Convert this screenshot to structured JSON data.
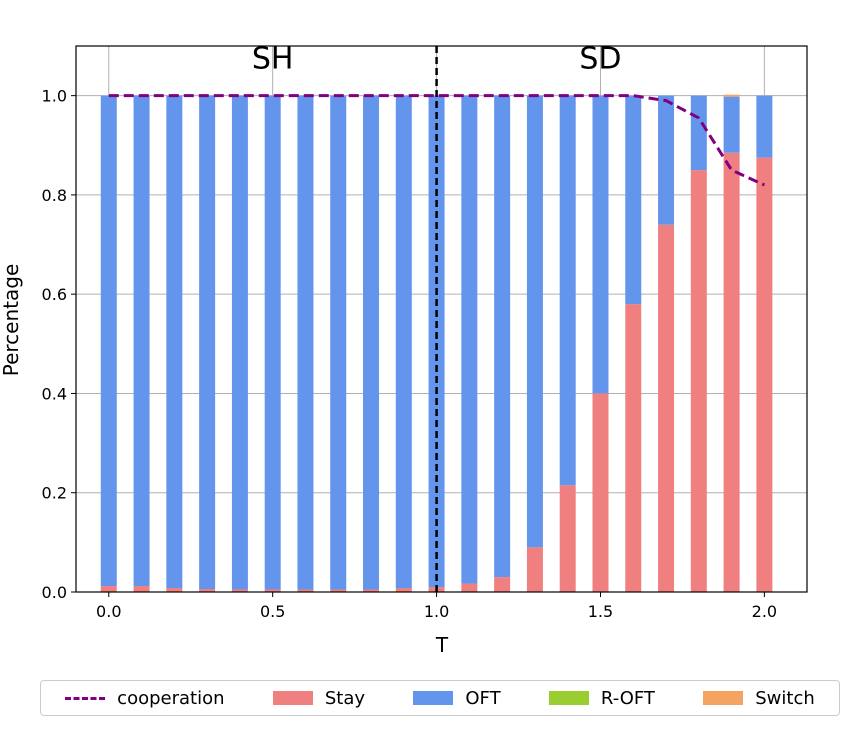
{
  "chart_data": {
    "type": "bar",
    "stacked": true,
    "xlabel": "T",
    "ylabel": "Percentage",
    "xlim": [
      -0.1,
      2.13
    ],
    "ylim": [
      0.0,
      1.1
    ],
    "xticks": [
      "0.0",
      "0.5",
      "1.0",
      "1.5",
      "2.0"
    ],
    "yticks": [
      "0.0",
      "0.2",
      "0.4",
      "0.6",
      "0.8",
      "1.0"
    ],
    "grid": true,
    "legend_position": "bottom",
    "regions": [
      {
        "label": "SH",
        "x_center": 0.5
      },
      {
        "label": "SD",
        "x_center": 1.5
      }
    ],
    "divider_x": 1.0,
    "x": [
      0.0,
      0.1,
      0.2,
      0.3,
      0.4,
      0.5,
      0.6,
      0.7,
      0.8,
      0.9,
      1.0,
      1.1,
      1.2,
      1.3,
      1.4,
      1.5,
      1.6,
      1.7,
      1.8,
      1.9,
      2.0
    ],
    "series": [
      {
        "name": "Stay",
        "color": "#f08080",
        "values": [
          0.012,
          0.012,
          0.008,
          0.006,
          0.005,
          0.005,
          0.005,
          0.005,
          0.005,
          0.008,
          0.01,
          0.017,
          0.03,
          0.09,
          0.215,
          0.4,
          0.58,
          0.74,
          0.85,
          0.885,
          0.875
        ]
      },
      {
        "name": "OFT",
        "color": "#6495ed",
        "values": [
          0.988,
          0.988,
          0.992,
          0.994,
          0.995,
          0.995,
          0.995,
          0.995,
          0.995,
          0.992,
          0.99,
          0.983,
          0.97,
          0.91,
          0.785,
          0.6,
          0.42,
          0.26,
          0.15,
          0.113,
          0.125
        ]
      },
      {
        "name": "R-OFT",
        "color": "#9acd32",
        "values": [
          0,
          0,
          0,
          0,
          0,
          0,
          0,
          0,
          0,
          0,
          0,
          0,
          0,
          0,
          0,
          0,
          0,
          0,
          0,
          0,
          0
        ]
      },
      {
        "name": "Switch",
        "color": "#f4a460",
        "values": [
          0,
          0,
          0,
          0,
          0,
          0,
          0,
          0,
          0,
          0,
          0,
          0,
          0,
          0,
          0,
          0,
          0,
          0,
          0,
          0.004,
          0
        ]
      }
    ],
    "line_series": {
      "name": "cooperation",
      "color": "#800080",
      "style": "dashed",
      "values": [
        1.0,
        1.0,
        1.0,
        1.0,
        1.0,
        1.0,
        1.0,
        1.0,
        1.0,
        1.0,
        1.0,
        1.0,
        1.0,
        1.0,
        1.0,
        1.0,
        1.0,
        0.99,
        0.955,
        0.85,
        0.82
      ]
    }
  },
  "legend": {
    "items": [
      {
        "label": "cooperation",
        "kind": "line",
        "color": "#800080"
      },
      {
        "label": "Stay",
        "kind": "patch",
        "color": "#f08080"
      },
      {
        "label": "OFT",
        "kind": "patch",
        "color": "#6495ed"
      },
      {
        "label": "R-OFT",
        "kind": "patch",
        "color": "#9acd32"
      },
      {
        "label": "Switch",
        "kind": "patch",
        "color": "#f4a460"
      }
    ]
  }
}
